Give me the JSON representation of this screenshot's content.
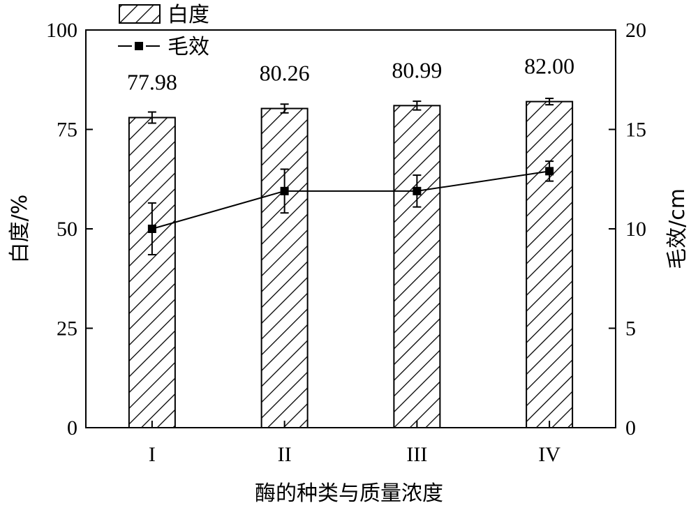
{
  "chart_data": {
    "type": "bar",
    "categories": [
      "I",
      "II",
      "III",
      "IV"
    ],
    "series": [
      {
        "name": "白度",
        "type": "bar",
        "axis": "left",
        "values": [
          77.98,
          80.26,
          80.99,
          82.0
        ],
        "labels": [
          "77.98",
          "80.26",
          "80.99",
          "82.00"
        ],
        "error": [
          1.4,
          1.1,
          1.1,
          0.8
        ],
        "pattern": "diagonal-hatch"
      },
      {
        "name": "毛效",
        "type": "line",
        "axis": "right",
        "marker": "square",
        "values": [
          10.0,
          11.9,
          11.9,
          12.9
        ],
        "error": [
          1.3,
          1.1,
          0.8,
          0.5
        ]
      }
    ],
    "xlabel": "酶的种类与质量浓度",
    "ylabel": "白度/%",
    "y2label": "毛效/cm",
    "ylim": [
      0,
      100
    ],
    "y2lim": [
      0,
      20
    ],
    "yticks": [
      0,
      25,
      50,
      75,
      100
    ],
    "y2ticks": [
      0,
      5,
      10,
      15,
      20
    ],
    "grid": false,
    "legend": "top-left"
  }
}
